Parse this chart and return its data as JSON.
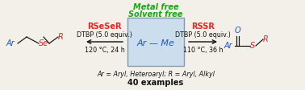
{
  "bg_color": "#f2f0e8",
  "box_facecolor": "#ccdded",
  "box_edgecolor": "#8899aa",
  "box_text": "Ar — Me",
  "box_text_color": "#2255cc",
  "top_line1": "Metal free",
  "top_line2": "Solvent free",
  "top_color": "#11aa11",
  "left_reagent": "RSeSeR",
  "left_reagent_color": "#ee2222",
  "left_cond1": "DTBP (5.0 equiv.)",
  "left_cond2": "120 °C, 24 h",
  "right_reagent": "RSSR",
  "right_reagent_color": "#ee2222",
  "right_cond1": "DTBP (5.0 equiv.)",
  "right_cond2": "110 °C, 36 h",
  "bottom_italic": "Ar = Aryl, Heteroaryl; R = Aryl, Alkyl",
  "bottom_bold": "40 examples",
  "blue": "#2255cc",
  "red": "#dd2222",
  "black": "#111111"
}
